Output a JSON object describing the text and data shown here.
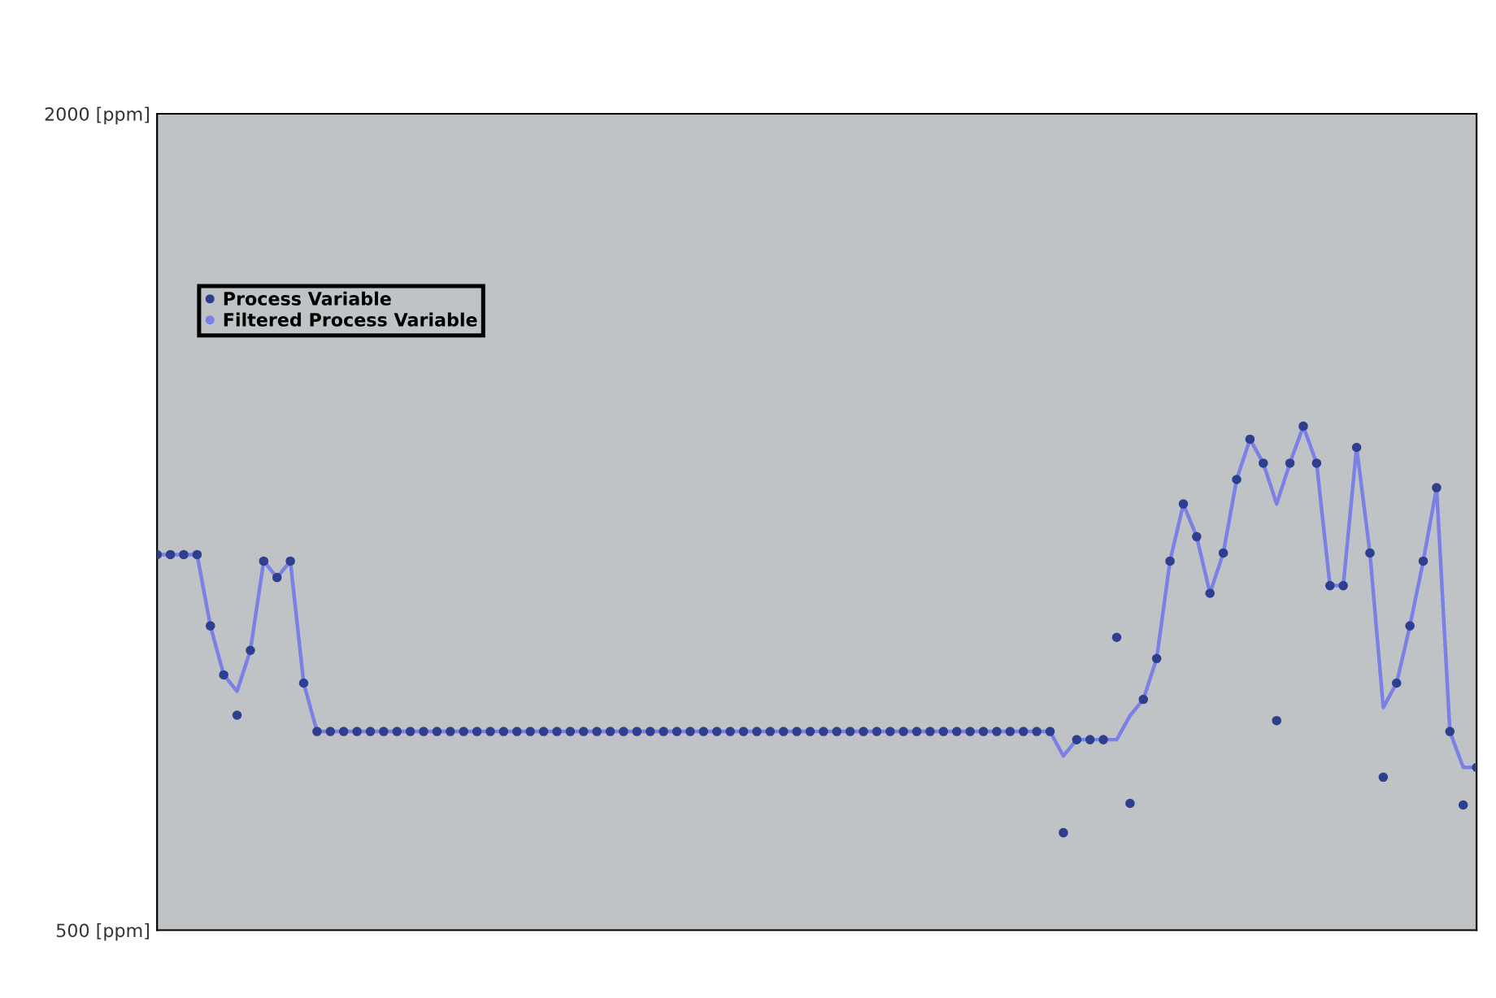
{
  "chart_data": {
    "type": "line",
    "categories": [
      null,
      null,
      null,
      null,
      null,
      null,
      null,
      null,
      null,
      null,
      null,
      null,
      null,
      null,
      null,
      null,
      null,
      null,
      null,
      null,
      null,
      null,
      null,
      null,
      null,
      null,
      null,
      null,
      null,
      null,
      null,
      null,
      null,
      null,
      null,
      null,
      null,
      null,
      null,
      null,
      null,
      null,
      null,
      null,
      null,
      null,
      null,
      null,
      null,
      null,
      null,
      null,
      null,
      null,
      null,
      null,
      null,
      null,
      null,
      null,
      null,
      null,
      null,
      null,
      null,
      null,
      null,
      null,
      null,
      null,
      null,
      null,
      null,
      null,
      null,
      null,
      null,
      null,
      null,
      null,
      null,
      null,
      null,
      null,
      null,
      null,
      null,
      null,
      null,
      null,
      null,
      null,
      null,
      null,
      null,
      null,
      null,
      null,
      null,
      null
    ],
    "series": [
      {
        "name": "Process Variable",
        "type": "scatter",
        "marker": "circle",
        "color": "#2f3f8f",
        "values": [
          1190,
          1190,
          1190,
          1190,
          1059,
          969,
          895,
          1014,
          1178,
          1148,
          1178,
          954,
          865,
          865,
          865,
          865,
          865,
          865,
          865,
          865,
          865,
          865,
          865,
          865,
          865,
          865,
          865,
          865,
          865,
          865,
          865,
          865,
          865,
          865,
          865,
          865,
          865,
          865,
          865,
          865,
          865,
          865,
          865,
          865,
          865,
          865,
          865,
          865,
          865,
          865,
          865,
          865,
          865,
          865,
          865,
          865,
          865,
          865,
          865,
          865,
          865,
          865,
          865,
          865,
          865,
          865,
          865,
          865,
          679,
          850,
          850,
          850,
          1038,
          733,
          924,
          999,
          1178,
          1283,
          1223,
          1119,
          1193,
          1328,
          1402,
          1358,
          885,
          1358,
          1426,
          1358,
          1133,
          1133,
          1387,
          1193,
          781,
          954,
          1059,
          1178,
          1313,
          865,
          730,
          799
        ]
      },
      {
        "name": "Filtered Process Variable",
        "marker": "none",
        "line_style": "solid",
        "color": "#7b80e6",
        "values": [
          1190,
          1190,
          1190,
          1190,
          1059,
          969,
          939,
          1014,
          1178,
          1148,
          1178,
          954,
          865,
          865,
          865,
          865,
          865,
          865,
          865,
          865,
          865,
          865,
          865,
          865,
          865,
          865,
          865,
          865,
          865,
          865,
          865,
          865,
          865,
          865,
          865,
          865,
          865,
          865,
          865,
          865,
          865,
          865,
          865,
          865,
          865,
          865,
          865,
          865,
          865,
          865,
          865,
          865,
          865,
          865,
          865,
          865,
          865,
          865,
          865,
          865,
          865,
          865,
          865,
          865,
          865,
          865,
          865,
          865,
          820,
          850,
          850,
          850,
          850,
          894,
          924,
          999,
          1178,
          1283,
          1223,
          1119,
          1193,
          1328,
          1402,
          1358,
          1283,
          1358,
          1426,
          1358,
          1133,
          1133,
          1387,
          1193,
          909,
          954,
          1059,
          1178,
          1313,
          865,
          799,
          799
        ]
      }
    ],
    "ylim": [
      500,
      2000
    ],
    "yticks": [
      {
        "value": 2000,
        "label": "2000 [ppm]"
      },
      {
        "value": 500,
        "label": "500 [ppm]"
      }
    ],
    "tick_labels": "y",
    "grid": false,
    "legend": "top left"
  }
}
